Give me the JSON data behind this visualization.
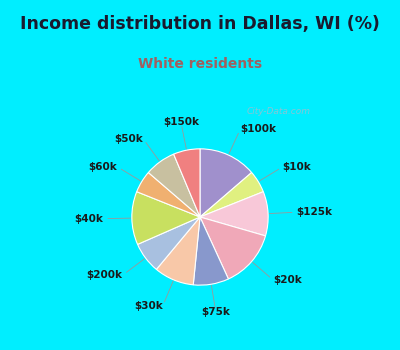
{
  "title": "Income distribution in Dallas, WI (%)",
  "subtitle": "White residents",
  "title_color": "#1a1a2e",
  "subtitle_color": "#a06060",
  "bg_cyan": "#00eeff",
  "bg_chart": "#e0f5ee",
  "labels": [
    "$100k",
    "$10k",
    "$125k",
    "$20k",
    "$75k",
    "$30k",
    "$200k",
    "$40k",
    "$60k",
    "$50k",
    "$150k"
  ],
  "values": [
    13,
    5,
    10,
    13,
    8,
    9,
    7,
    12,
    5,
    7,
    6
  ],
  "colors": [
    "#a090cc",
    "#e0f080",
    "#f8c8d8",
    "#f0a8b8",
    "#8898cc",
    "#f8c8a8",
    "#a8c0e0",
    "#c8e060",
    "#f0b070",
    "#c8c0a0",
    "#f08080"
  ],
  "watermark": "City-Data.com",
  "line_color": "#999999",
  "label_fontsize": 7.5,
  "title_fontsize": 12.5,
  "subtitle_fontsize": 10
}
